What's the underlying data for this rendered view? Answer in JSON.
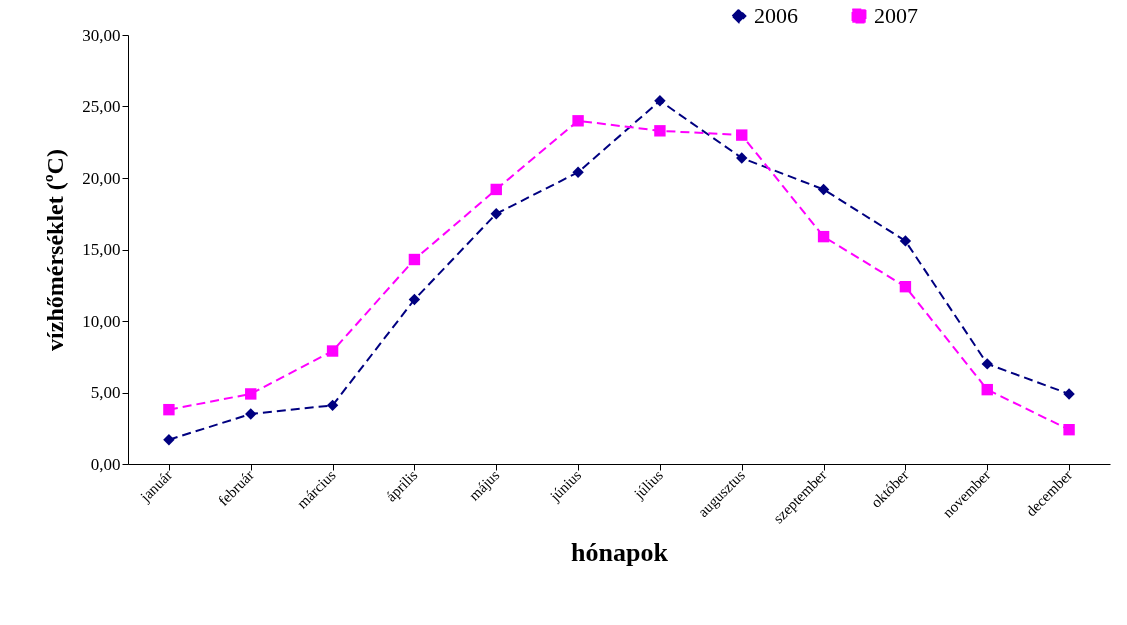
{
  "chart_data": {
    "type": "line",
    "xlabel": "hónapok",
    "ylabel": "vízhőmérséklet (ºC)",
    "categories": [
      "január",
      "február",
      "március",
      "április",
      "május",
      "június",
      "július",
      "augusztus",
      "szeptember",
      "október",
      "november",
      "december"
    ],
    "series": [
      {
        "name": "2006",
        "color": "#000080",
        "marker": "diamond",
        "line_style": "dashed",
        "values": [
          1.7,
          3.5,
          4.1,
          11.5,
          17.5,
          20.4,
          25.4,
          21.4,
          19.2,
          15.6,
          7.0,
          4.9
        ]
      },
      {
        "name": "2007",
        "color": "#ff00ff",
        "marker": "square",
        "line_style": "dashed",
        "values": [
          3.8,
          4.9,
          7.9,
          14.3,
          19.2,
          24.0,
          23.3,
          23.0,
          15.9,
          12.4,
          5.2,
          2.4
        ]
      }
    ],
    "ylim": [
      0,
      30
    ],
    "yticks": [
      {
        "value": 0,
        "label": "0,00"
      },
      {
        "value": 5,
        "label": "5,00"
      },
      {
        "value": 10,
        "label": "10,00"
      },
      {
        "value": 15,
        "label": "15,00"
      },
      {
        "value": 20,
        "label": "20,00"
      },
      {
        "value": 25,
        "label": "25,00"
      },
      {
        "value": 30,
        "label": "30,00"
      }
    ],
    "grid": false,
    "legend": "top right"
  }
}
